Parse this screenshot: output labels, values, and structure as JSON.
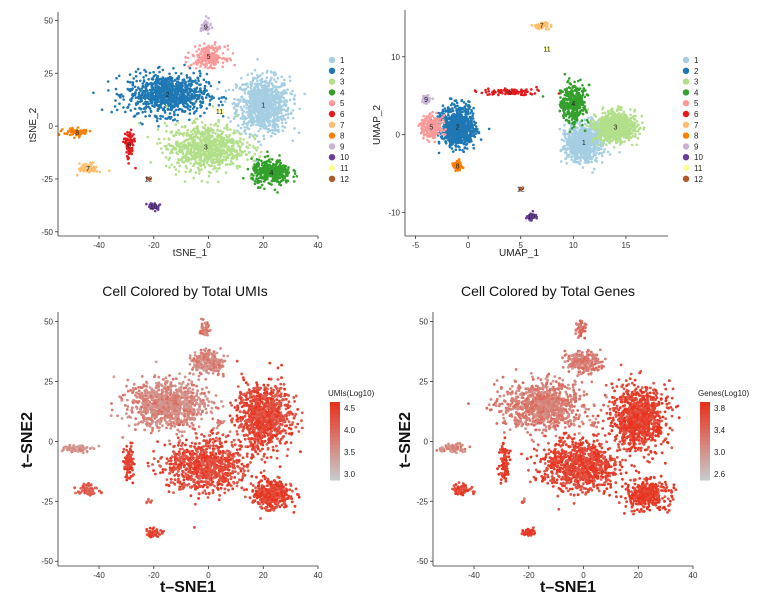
{
  "chart_data": [
    {
      "type": "scatter",
      "panel": "tsne-clusters",
      "title": "",
      "xlabel": "tSNE_1",
      "ylabel": "tSNE_2",
      "xlim": [
        -55,
        40
      ],
      "ylim": [
        -52,
        54
      ],
      "xticks": [
        -40,
        -20,
        0,
        20,
        40
      ],
      "yticks": [
        -50,
        -25,
        0,
        25,
        50
      ],
      "legend_position": "right",
      "series": [
        {
          "name": "1",
          "color": "#a6cee3",
          "center": [
            20,
            10
          ],
          "spread": [
            8,
            11
          ]
        },
        {
          "name": "2",
          "color": "#1f78b4",
          "center": [
            -15,
            15
          ],
          "spread": [
            12,
            8
          ]
        },
        {
          "name": "3",
          "color": "#b2df8a",
          "center": [
            -1,
            -10
          ],
          "spread": [
            12,
            9
          ]
        },
        {
          "name": "4",
          "color": "#33a02c",
          "center": [
            23,
            -22
          ],
          "spread": [
            6,
            5
          ]
        },
        {
          "name": "5",
          "color": "#fb9a99",
          "center": [
            0,
            33
          ],
          "spread": [
            5,
            4
          ]
        },
        {
          "name": "6",
          "color": "#e31a1c",
          "center": [
            -29,
            -9
          ],
          "spread": [
            1.5,
            6
          ]
        },
        {
          "name": "7",
          "color": "#fdbf6f",
          "center": [
            -44,
            -20
          ],
          "spread": [
            3,
            2
          ]
        },
        {
          "name": "8",
          "color": "#ff7f00",
          "center": [
            -48,
            -3
          ],
          "spread": [
            4,
            1.5
          ]
        },
        {
          "name": "9",
          "color": "#cab2d6",
          "center": [
            -1,
            47
          ],
          "spread": [
            1.5,
            3
          ]
        },
        {
          "name": "10",
          "color": "#6a3d9a",
          "center": [
            -20,
            -38
          ],
          "spread": [
            2,
            1.5
          ]
        },
        {
          "name": "11",
          "color": "#ffff99",
          "center": [
            4,
            7
          ],
          "spread": [
            1,
            1
          ]
        },
        {
          "name": "12",
          "color": "#b15928",
          "center": [
            -22,
            -25
          ],
          "spread": [
            0.8,
            0.8
          ]
        }
      ]
    },
    {
      "type": "scatter",
      "panel": "umap-clusters",
      "title": "",
      "xlabel": "UMAP_1",
      "ylabel": "UMAP_2",
      "xlim": [
        -6,
        19
      ],
      "ylim": [
        -13,
        16
      ],
      "xticks": [
        -5,
        0,
        5,
        10,
        15
      ],
      "yticks": [
        -10,
        0,
        10
      ],
      "legend_position": "right",
      "series": [
        {
          "name": "1",
          "color": "#a6cee3",
          "center": [
            11,
            -1
          ],
          "spread": [
            1.5,
            2
          ]
        },
        {
          "name": "2",
          "color": "#1f78b4",
          "center": [
            -1,
            1
          ],
          "spread": [
            1.3,
            2
          ]
        },
        {
          "name": "3",
          "color": "#b2df8a",
          "center": [
            14,
            1
          ],
          "spread": [
            1.6,
            1.5
          ]
        },
        {
          "name": "4",
          "color": "#33a02c",
          "center": [
            10,
            4
          ],
          "spread": [
            1,
            2
          ]
        },
        {
          "name": "5",
          "color": "#fb9a99",
          "center": [
            -3.5,
            1
          ],
          "spread": [
            0.8,
            1.2
          ]
        },
        {
          "name": "6",
          "color": "#e31a1c",
          "center": [
            4,
            5.5
          ],
          "spread": [
            3,
            0.4
          ]
        },
        {
          "name": "7",
          "color": "#fdbf6f",
          "center": [
            7,
            14
          ],
          "spread": [
            0.6,
            0.4
          ]
        },
        {
          "name": "8",
          "color": "#ff7f00",
          "center": [
            -1,
            -4
          ],
          "spread": [
            0.3,
            0.6
          ]
        },
        {
          "name": "9",
          "color": "#cab2d6",
          "center": [
            -4,
            4.5
          ],
          "spread": [
            0.4,
            0.4
          ]
        },
        {
          "name": "10",
          "color": "#6a3d9a",
          "center": [
            6,
            -10.5
          ],
          "spread": [
            0.3,
            0.3
          ]
        },
        {
          "name": "11",
          "color": "#ffff99",
          "center": [
            7.5,
            11
          ],
          "spread": [
            0.2,
            0.2
          ]
        },
        {
          "name": "12",
          "color": "#b15928",
          "center": [
            5,
            -7
          ],
          "spread": [
            0.2,
            0.2
          ]
        }
      ]
    },
    {
      "type": "scatter",
      "panel": "tsne-umis",
      "title": "Cell Colored by Total UMIs",
      "xlabel": "t–SNE1",
      "ylabel": "t–SNE2",
      "xlim": [
        -55,
        40
      ],
      "ylim": [
        -52,
        54
      ],
      "xticks": [
        -40,
        -20,
        0,
        20,
        40
      ],
      "yticks": [
        -50,
        -25,
        0,
        25,
        50
      ],
      "colorbar": {
        "title": "UMIs(Log10)",
        "ticks": [
          "4.5",
          "4.0",
          "3.5",
          "3.0"
        ],
        "low_color": "#c8c8c8",
        "high_color": "#e8321e"
      }
    },
    {
      "type": "scatter",
      "panel": "tsne-genes",
      "title": "Cell Colored by Total Genes",
      "xlabel": "t–SNE1",
      "ylabel": "t–SNE2",
      "xlim": [
        -55,
        40
      ],
      "ylim": [
        -52,
        54
      ],
      "xticks": [
        -40,
        -20,
        0,
        20,
        40
      ],
      "yticks": [
        -50,
        -25,
        0,
        25,
        50
      ],
      "colorbar": {
        "title": "Genes(Log10)",
        "ticks": [
          "3.8",
          "3.4",
          "3.0",
          "2.6"
        ],
        "low_color": "#c8c8c8",
        "high_color": "#e8321e"
      }
    }
  ]
}
